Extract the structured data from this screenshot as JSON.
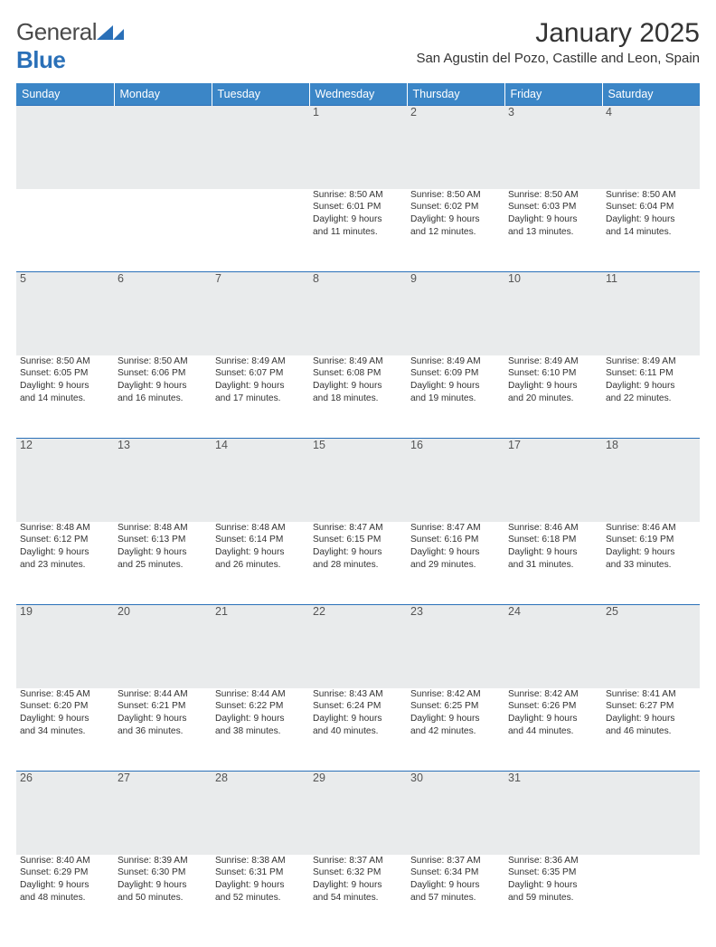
{
  "brand": {
    "name_part1": "General",
    "name_part2": "Blue"
  },
  "header": {
    "month_title": "January 2025",
    "location": "San Agustin del Pozo, Castille and Leon, Spain"
  },
  "colors": {
    "header_bg": "#3b86c7",
    "header_text": "#ffffff",
    "daynum_bg": "#e9ebec",
    "rule": "#2a70b8",
    "brand_blue": "#2a70b8"
  },
  "daysOfWeek": [
    "Sunday",
    "Monday",
    "Tuesday",
    "Wednesday",
    "Thursday",
    "Friday",
    "Saturday"
  ],
  "weeks": [
    {
      "nums": [
        "",
        "",
        "",
        "1",
        "2",
        "3",
        "4"
      ],
      "cells": [
        null,
        null,
        null,
        {
          "sunrise": "Sunrise: 8:50 AM",
          "sunset": "Sunset: 6:01 PM",
          "d1": "Daylight: 9 hours",
          "d2": "and 11 minutes."
        },
        {
          "sunrise": "Sunrise: 8:50 AM",
          "sunset": "Sunset: 6:02 PM",
          "d1": "Daylight: 9 hours",
          "d2": "and 12 minutes."
        },
        {
          "sunrise": "Sunrise: 8:50 AM",
          "sunset": "Sunset: 6:03 PM",
          "d1": "Daylight: 9 hours",
          "d2": "and 13 minutes."
        },
        {
          "sunrise": "Sunrise: 8:50 AM",
          "sunset": "Sunset: 6:04 PM",
          "d1": "Daylight: 9 hours",
          "d2": "and 14 minutes."
        }
      ]
    },
    {
      "nums": [
        "5",
        "6",
        "7",
        "8",
        "9",
        "10",
        "11"
      ],
      "cells": [
        {
          "sunrise": "Sunrise: 8:50 AM",
          "sunset": "Sunset: 6:05 PM",
          "d1": "Daylight: 9 hours",
          "d2": "and 14 minutes."
        },
        {
          "sunrise": "Sunrise: 8:50 AM",
          "sunset": "Sunset: 6:06 PM",
          "d1": "Daylight: 9 hours",
          "d2": "and 16 minutes."
        },
        {
          "sunrise": "Sunrise: 8:49 AM",
          "sunset": "Sunset: 6:07 PM",
          "d1": "Daylight: 9 hours",
          "d2": "and 17 minutes."
        },
        {
          "sunrise": "Sunrise: 8:49 AM",
          "sunset": "Sunset: 6:08 PM",
          "d1": "Daylight: 9 hours",
          "d2": "and 18 minutes."
        },
        {
          "sunrise": "Sunrise: 8:49 AM",
          "sunset": "Sunset: 6:09 PM",
          "d1": "Daylight: 9 hours",
          "d2": "and 19 minutes."
        },
        {
          "sunrise": "Sunrise: 8:49 AM",
          "sunset": "Sunset: 6:10 PM",
          "d1": "Daylight: 9 hours",
          "d2": "and 20 minutes."
        },
        {
          "sunrise": "Sunrise: 8:49 AM",
          "sunset": "Sunset: 6:11 PM",
          "d1": "Daylight: 9 hours",
          "d2": "and 22 minutes."
        }
      ]
    },
    {
      "nums": [
        "12",
        "13",
        "14",
        "15",
        "16",
        "17",
        "18"
      ],
      "cells": [
        {
          "sunrise": "Sunrise: 8:48 AM",
          "sunset": "Sunset: 6:12 PM",
          "d1": "Daylight: 9 hours",
          "d2": "and 23 minutes."
        },
        {
          "sunrise": "Sunrise: 8:48 AM",
          "sunset": "Sunset: 6:13 PM",
          "d1": "Daylight: 9 hours",
          "d2": "and 25 minutes."
        },
        {
          "sunrise": "Sunrise: 8:48 AM",
          "sunset": "Sunset: 6:14 PM",
          "d1": "Daylight: 9 hours",
          "d2": "and 26 minutes."
        },
        {
          "sunrise": "Sunrise: 8:47 AM",
          "sunset": "Sunset: 6:15 PM",
          "d1": "Daylight: 9 hours",
          "d2": "and 28 minutes."
        },
        {
          "sunrise": "Sunrise: 8:47 AM",
          "sunset": "Sunset: 6:16 PM",
          "d1": "Daylight: 9 hours",
          "d2": "and 29 minutes."
        },
        {
          "sunrise": "Sunrise: 8:46 AM",
          "sunset": "Sunset: 6:18 PM",
          "d1": "Daylight: 9 hours",
          "d2": "and 31 minutes."
        },
        {
          "sunrise": "Sunrise: 8:46 AM",
          "sunset": "Sunset: 6:19 PM",
          "d1": "Daylight: 9 hours",
          "d2": "and 33 minutes."
        }
      ]
    },
    {
      "nums": [
        "19",
        "20",
        "21",
        "22",
        "23",
        "24",
        "25"
      ],
      "cells": [
        {
          "sunrise": "Sunrise: 8:45 AM",
          "sunset": "Sunset: 6:20 PM",
          "d1": "Daylight: 9 hours",
          "d2": "and 34 minutes."
        },
        {
          "sunrise": "Sunrise: 8:44 AM",
          "sunset": "Sunset: 6:21 PM",
          "d1": "Daylight: 9 hours",
          "d2": "and 36 minutes."
        },
        {
          "sunrise": "Sunrise: 8:44 AM",
          "sunset": "Sunset: 6:22 PM",
          "d1": "Daylight: 9 hours",
          "d2": "and 38 minutes."
        },
        {
          "sunrise": "Sunrise: 8:43 AM",
          "sunset": "Sunset: 6:24 PM",
          "d1": "Daylight: 9 hours",
          "d2": "and 40 minutes."
        },
        {
          "sunrise": "Sunrise: 8:42 AM",
          "sunset": "Sunset: 6:25 PM",
          "d1": "Daylight: 9 hours",
          "d2": "and 42 minutes."
        },
        {
          "sunrise": "Sunrise: 8:42 AM",
          "sunset": "Sunset: 6:26 PM",
          "d1": "Daylight: 9 hours",
          "d2": "and 44 minutes."
        },
        {
          "sunrise": "Sunrise: 8:41 AM",
          "sunset": "Sunset: 6:27 PM",
          "d1": "Daylight: 9 hours",
          "d2": "and 46 minutes."
        }
      ]
    },
    {
      "nums": [
        "26",
        "27",
        "28",
        "29",
        "30",
        "31",
        ""
      ],
      "cells": [
        {
          "sunrise": "Sunrise: 8:40 AM",
          "sunset": "Sunset: 6:29 PM",
          "d1": "Daylight: 9 hours",
          "d2": "and 48 minutes."
        },
        {
          "sunrise": "Sunrise: 8:39 AM",
          "sunset": "Sunset: 6:30 PM",
          "d1": "Daylight: 9 hours",
          "d2": "and 50 minutes."
        },
        {
          "sunrise": "Sunrise: 8:38 AM",
          "sunset": "Sunset: 6:31 PM",
          "d1": "Daylight: 9 hours",
          "d2": "and 52 minutes."
        },
        {
          "sunrise": "Sunrise: 8:37 AM",
          "sunset": "Sunset: 6:32 PM",
          "d1": "Daylight: 9 hours",
          "d2": "and 54 minutes."
        },
        {
          "sunrise": "Sunrise: 8:37 AM",
          "sunset": "Sunset: 6:34 PM",
          "d1": "Daylight: 9 hours",
          "d2": "and 57 minutes."
        },
        {
          "sunrise": "Sunrise: 8:36 AM",
          "sunset": "Sunset: 6:35 PM",
          "d1": "Daylight: 9 hours",
          "d2": "and 59 minutes."
        },
        null
      ]
    }
  ]
}
